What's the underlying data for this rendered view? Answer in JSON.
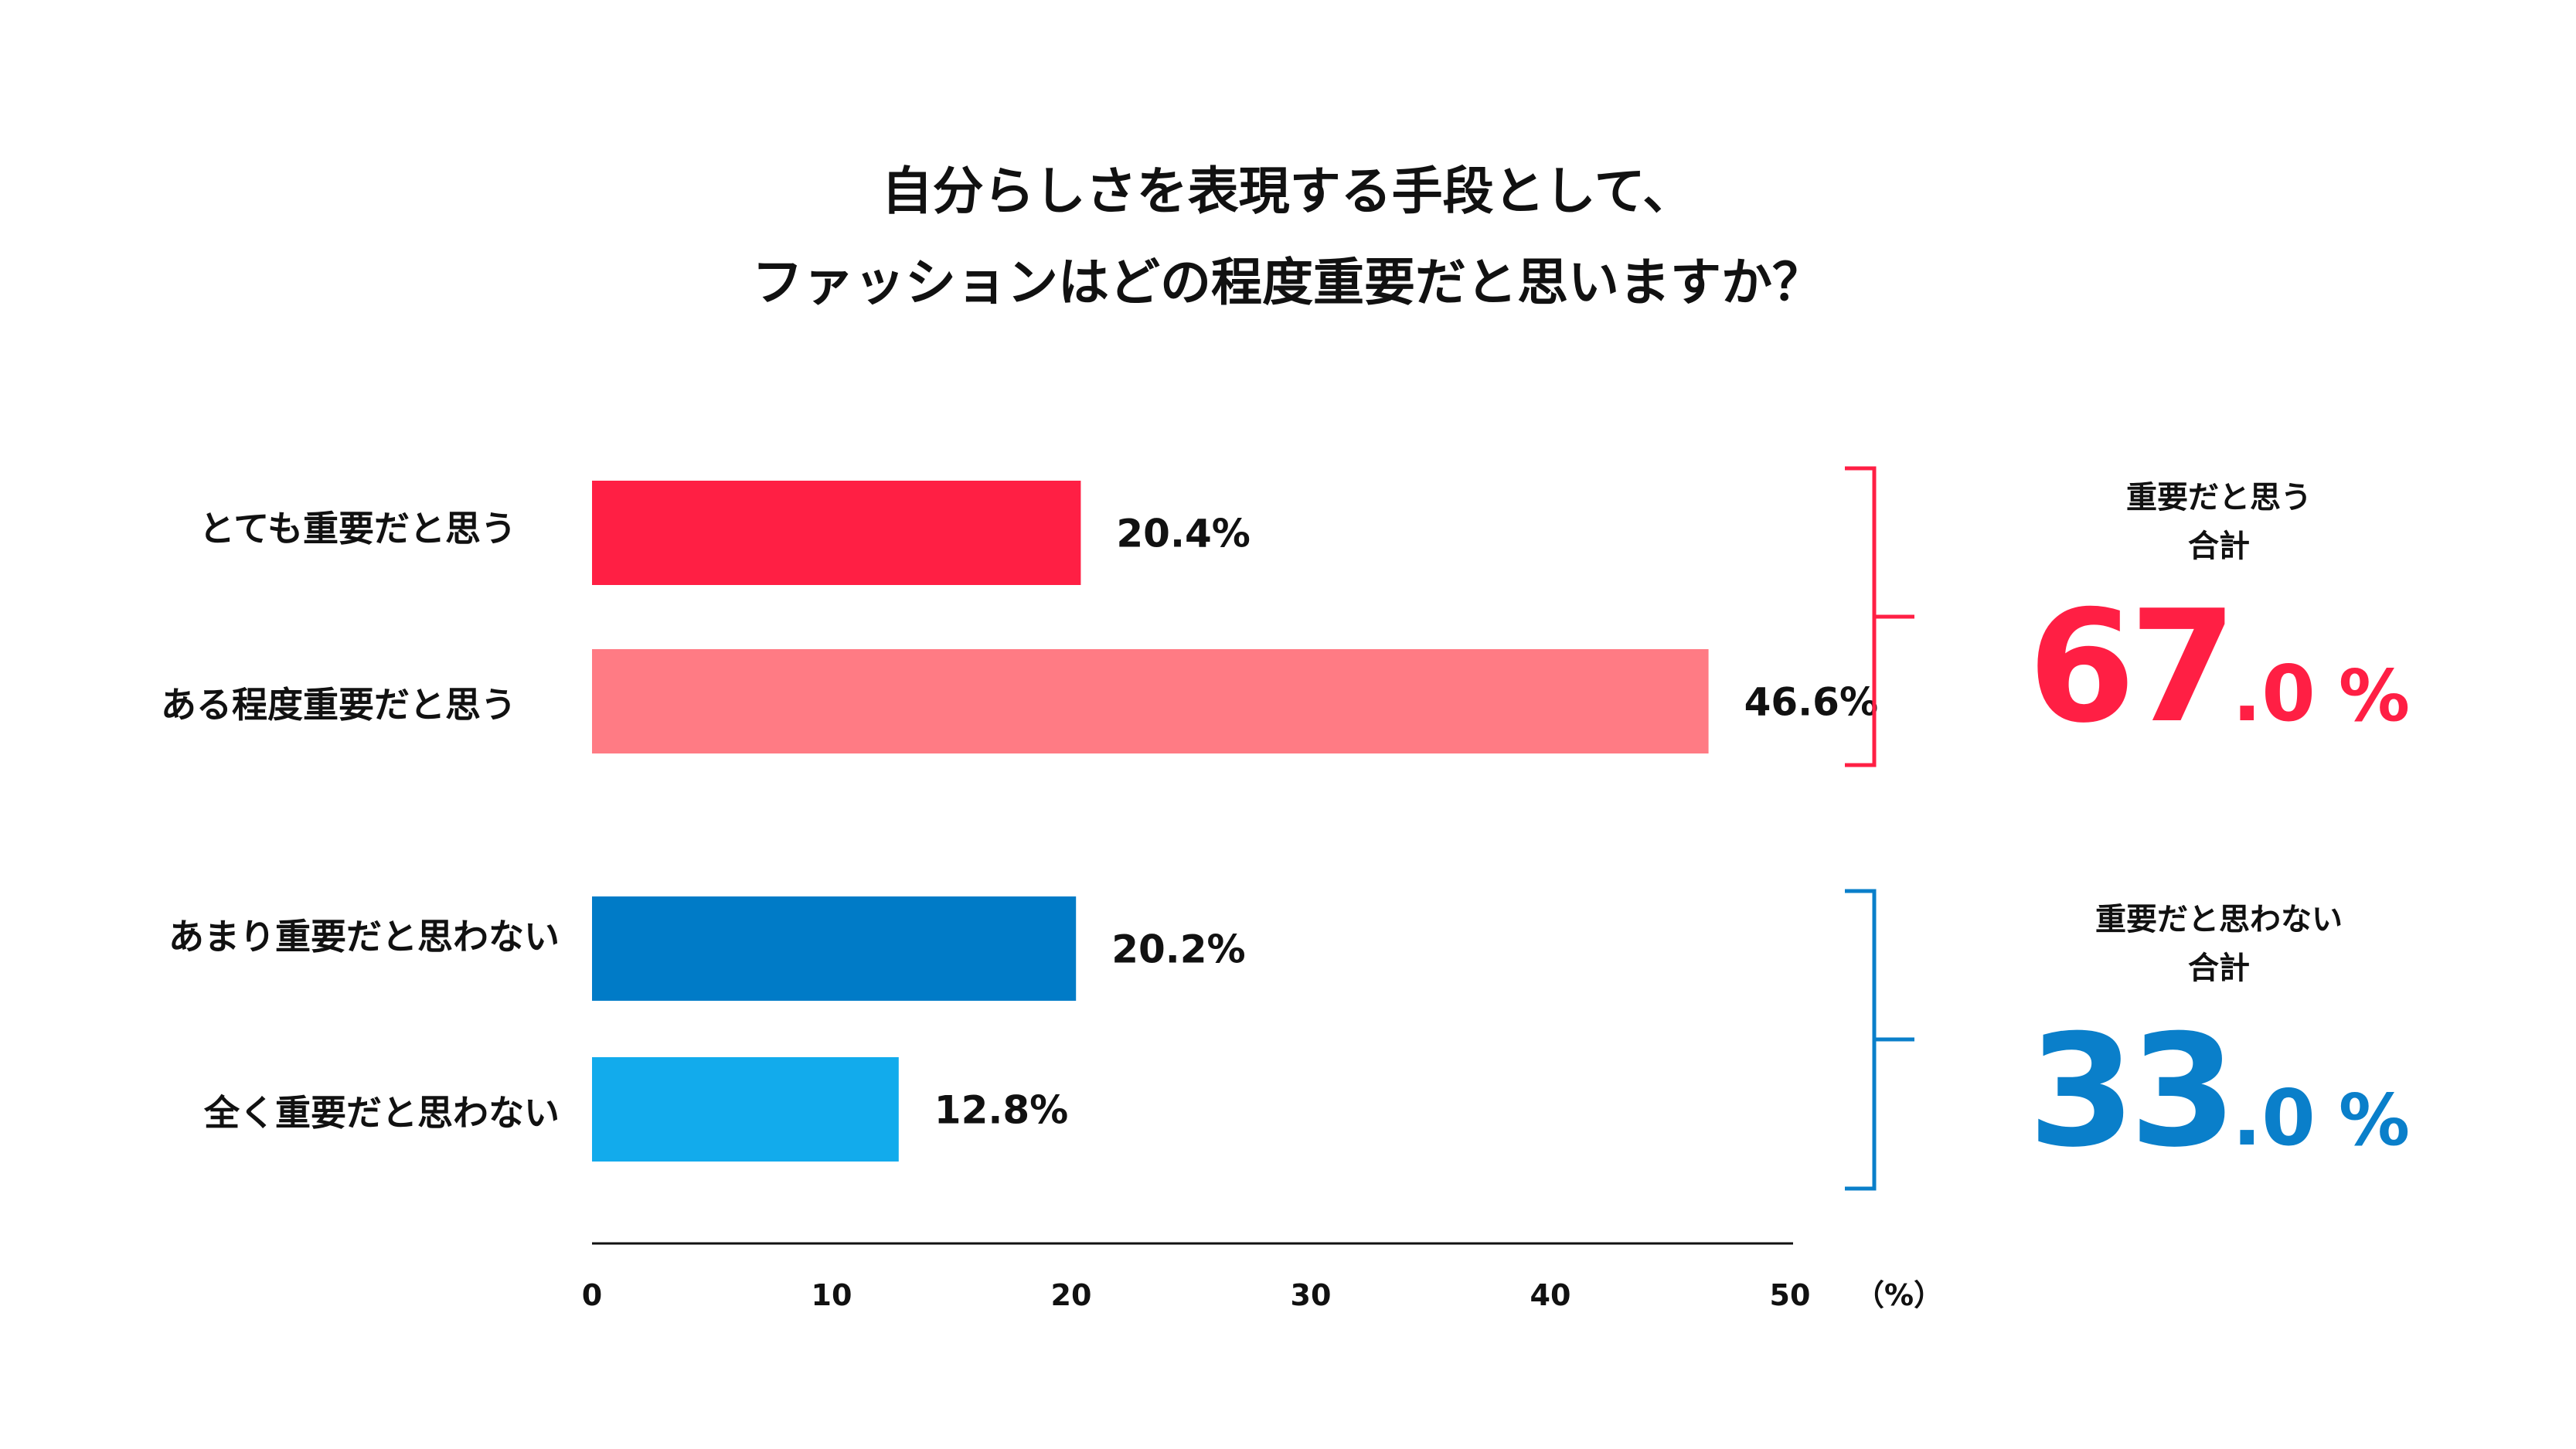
{
  "chart_data": {
    "type": "bar",
    "orientation": "horizontal",
    "title_lines": [
      "自分らしさを表現する手段として、",
      "ファッションはどの程度重要だと思いますか？"
    ],
    "categories": [
      "とても重要だと思う",
      "ある程度重要だと思う",
      "あまり重要だと思わない",
      "全く重要だと思わない"
    ],
    "values": [
      20.4,
      46.6,
      20.2,
      12.8
    ],
    "value_labels": [
      "20.4%",
      "46.6%",
      "20.2%",
      "12.8%"
    ],
    "colors": [
      "#ff1f44",
      "#ff7b84",
      "#007bc7",
      "#12abec"
    ],
    "xlim": [
      0,
      50
    ],
    "x_ticks": [
      0,
      10,
      20,
      30,
      40,
      50
    ],
    "x_tick_labels": [
      "0",
      "10",
      "20",
      "30",
      "40",
      "50"
    ],
    "x_unit_label": "（%）",
    "grid": false,
    "summaries": [
      {
        "label_lines": [
          "重要だと思う",
          "合計"
        ],
        "value_int": "67",
        "value_dec": ".0",
        "unit": "%",
        "color": "#ff1f44",
        "bracket_color": "#ff1f44",
        "group_members": [
          0,
          1
        ]
      },
      {
        "label_lines": [
          "重要だと思わない",
          "合計"
        ],
        "value_int": "33",
        "value_dec": ".0",
        "unit": "%",
        "color": "#0a7fca",
        "bracket_color": "#0a7fca",
        "group_members": [
          2,
          3
        ]
      }
    ]
  }
}
